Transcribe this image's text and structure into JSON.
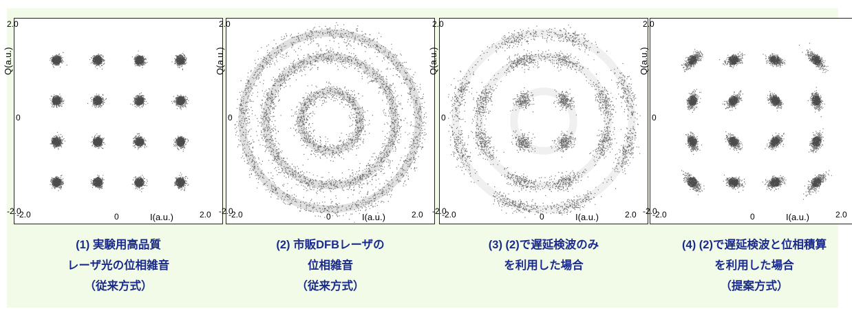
{
  "chart_data": [
    {
      "type": "scatter",
      "xlabel": "I(a.u.)",
      "ylabel": "Q(a.u.)",
      "xlim": [
        -2.0,
        2.0
      ],
      "ylim": [
        -2.0,
        2.0
      ],
      "x_ticks": [
        "-2.0",
        "0",
        "2.0"
      ],
      "y_ticks": [
        "2.0",
        "0",
        "-2.0"
      ],
      "caption": [
        "(1) 実験用高品質",
        "レーザ光の位相雑音",
        "（従来方式）"
      ],
      "clusters": [
        {
          "x": -1.25,
          "y": 1.25
        },
        {
          "x": -0.42,
          "y": 1.25
        },
        {
          "x": 0.42,
          "y": 1.25
        },
        {
          "x": 1.25,
          "y": 1.25
        },
        {
          "x": -1.25,
          "y": 0.42
        },
        {
          "x": -0.42,
          "y": 0.42
        },
        {
          "x": 0.42,
          "y": 0.42
        },
        {
          "x": 1.25,
          "y": 0.42
        },
        {
          "x": -1.25,
          "y": -0.42
        },
        {
          "x": -0.42,
          "y": -0.42
        },
        {
          "x": 0.42,
          "y": -0.42
        },
        {
          "x": 1.25,
          "y": -0.42
        },
        {
          "x": -1.25,
          "y": -1.25
        },
        {
          "x": -0.42,
          "y": -1.25
        },
        {
          "x": 0.42,
          "y": -1.25
        },
        {
          "x": 1.25,
          "y": -1.25
        }
      ]
    },
    {
      "type": "scatter",
      "xlabel": "I(a.u.)",
      "ylabel": "Q(a.u.)",
      "xlim": [
        -2.0,
        2.0
      ],
      "ylim": [
        -2.0,
        2.0
      ],
      "x_ticks": [
        "-2.0",
        "0",
        "2.0"
      ],
      "y_ticks": [
        "2.0",
        "0",
        "-2.0"
      ],
      "caption": [
        "(2) 市販DFBレーザの",
        "位相雑音",
        "（従来方式）"
      ],
      "rings": [
        0.6,
        1.3,
        1.78
      ]
    },
    {
      "type": "scatter",
      "xlabel": "I(a.u.)",
      "ylabel": "Q(a.u.)",
      "xlim": [
        -2.0,
        2.0
      ],
      "ylim": [
        -2.0,
        2.0
      ],
      "x_ticks": [
        "-2.0",
        "0",
        "2.0"
      ],
      "y_ticks": [
        "2.0",
        "0",
        "-2.0"
      ],
      "caption": [
        "(3) (2)で遅延検波のみ",
        "を利用した場合"
      ],
      "rings": [
        0.6,
        1.3,
        1.78
      ]
    },
    {
      "type": "scatter",
      "xlabel": "I(a.u.)",
      "ylabel": "Q(a.u.)",
      "xlim": [
        -2.0,
        2.0
      ],
      "ylim": [
        -2.0,
        2.0
      ],
      "x_ticks": [
        "-2.0",
        "0",
        "2.0"
      ],
      "y_ticks": [
        "2.0",
        "0",
        "-2.0"
      ],
      "caption": [
        "(4) (2)で遅延検波と位相積算",
        "を利用した場合",
        "（提案方式）"
      ],
      "clusters": [
        {
          "x": -1.25,
          "y": 1.25
        },
        {
          "x": -0.42,
          "y": 1.25
        },
        {
          "x": 0.42,
          "y": 1.25
        },
        {
          "x": 1.25,
          "y": 1.25
        },
        {
          "x": -1.25,
          "y": 0.42
        },
        {
          "x": -0.42,
          "y": 0.42
        },
        {
          "x": 0.42,
          "y": 0.42
        },
        {
          "x": 1.25,
          "y": 0.42
        },
        {
          "x": -1.25,
          "y": -0.42
        },
        {
          "x": -0.42,
          "y": -0.42
        },
        {
          "x": 0.42,
          "y": -0.42
        },
        {
          "x": 1.25,
          "y": -0.42
        },
        {
          "x": -1.25,
          "y": -1.25
        },
        {
          "x": -0.42,
          "y": -1.25
        },
        {
          "x": 0.42,
          "y": -1.25
        },
        {
          "x": 1.25,
          "y": -1.25
        }
      ]
    }
  ]
}
